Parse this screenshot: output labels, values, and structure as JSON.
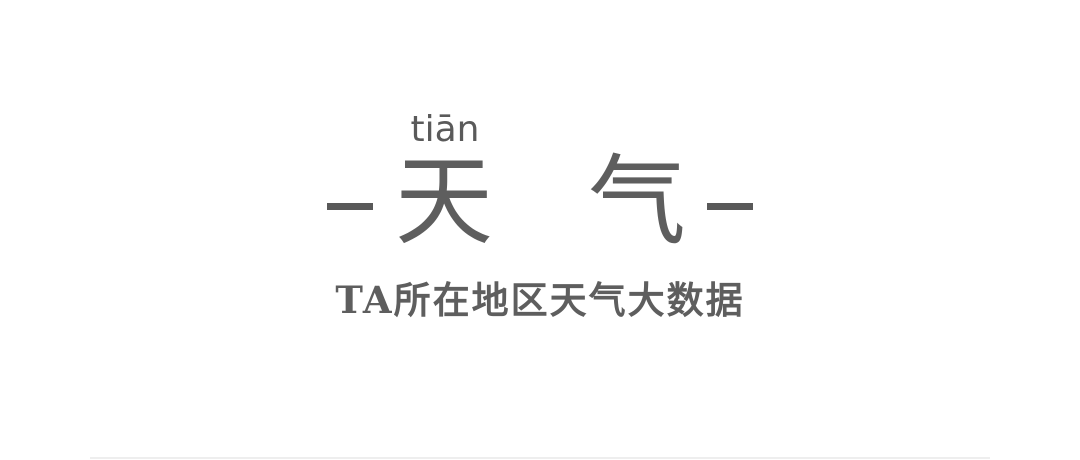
{
  "heading": {
    "pinyin": "tiān",
    "char_1": "天",
    "char_2": "气"
  },
  "subtitle": "TA所在地区天气大数据",
  "colors": {
    "text": "#595959",
    "background": "#ffffff",
    "divider": "#eeeeee"
  }
}
